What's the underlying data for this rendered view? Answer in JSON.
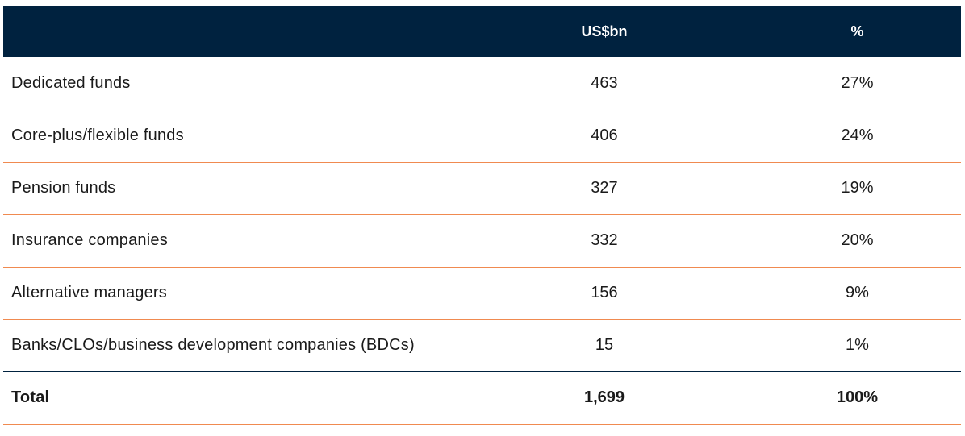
{
  "table": {
    "headers": {
      "label": "",
      "usd": "US$bn",
      "pct": "%"
    },
    "rows": [
      {
        "label": "Dedicated funds",
        "usd": "463",
        "pct": "27%"
      },
      {
        "label": "Core-plus/flexible funds",
        "usd": "406",
        "pct": "24%"
      },
      {
        "label": "Pension funds",
        "usd": "327",
        "pct": "19%"
      },
      {
        "label": "Insurance companies",
        "usd": "332",
        "pct": "20%"
      },
      {
        "label": "Alternative managers",
        "usd": "156",
        "pct": "9%"
      },
      {
        "label": "Banks/CLOs/business development companies (BDCs)",
        "usd": "15",
        "pct": "1%"
      }
    ],
    "total": {
      "label": "Total",
      "usd": "1,699",
      "pct": "100%"
    }
  },
  "colors": {
    "header_bg": "#00223f",
    "row_divider": "#f08a50",
    "total_divider": "#00223f"
  }
}
